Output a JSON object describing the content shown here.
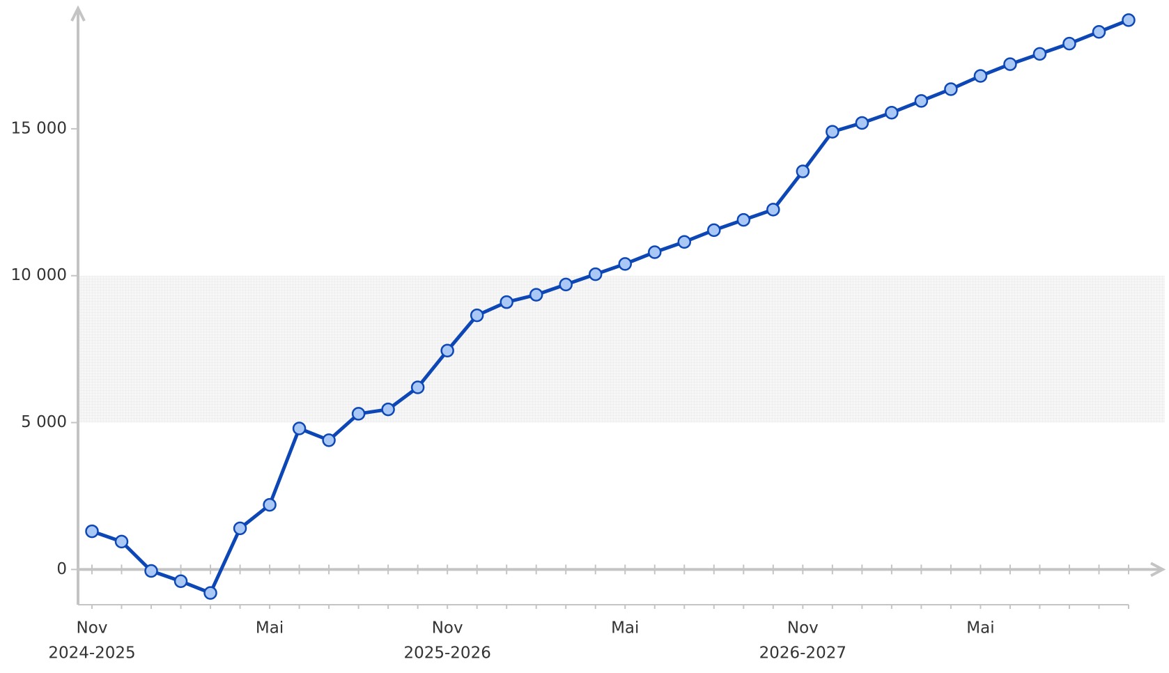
{
  "chart_data": {
    "type": "line",
    "categories": [
      "Nov",
      null,
      null,
      null,
      null,
      null,
      "Mai",
      null,
      null,
      null,
      null,
      null,
      "Nov",
      null,
      null,
      null,
      null,
      null,
      "Mai",
      null,
      null,
      null,
      null,
      null,
      "Nov",
      null,
      null,
      null,
      null,
      null,
      "Mai",
      null,
      null,
      null,
      null,
      null
    ],
    "x_groups": [
      "2024-2025",
      null,
      null,
      null,
      null,
      null,
      null,
      null,
      null,
      null,
      null,
      null,
      "2025-2026",
      null,
      null,
      null,
      null,
      null,
      null,
      null,
      null,
      null,
      null,
      null,
      "2026-2027",
      null,
      null,
      null,
      null,
      null,
      null,
      null,
      null,
      null,
      null,
      null
    ],
    "series": [
      {
        "color": "#0d47b5",
        "marker_color": "#a9c8f6",
        "values": [
          1300,
          950,
          -50,
          -400,
          -800,
          1400,
          2200,
          4800,
          4400,
          5300,
          5450,
          6200,
          7450,
          8650,
          9100,
          9350,
          9700,
          10050,
          10400,
          10800,
          11150,
          11550,
          11900,
          12250,
          13550,
          14900,
          15200,
          15550,
          15950,
          16350,
          16800,
          17200,
          17550,
          17900,
          18300,
          18700
        ]
      }
    ],
    "ylim": [
      -1200,
      19100
    ],
    "yticks": [
      0,
      {
        "value": 5000,
        "label": "5 000"
      },
      {
        "value": 10000,
        "label": "10 000"
      },
      {
        "value": 15000,
        "label": "15 000"
      }
    ],
    "shaded_range": [
      5000,
      10000
    ],
    "grid": false
  }
}
